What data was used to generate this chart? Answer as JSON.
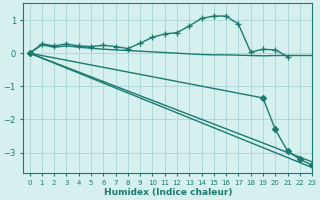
{
  "xlabel": "Humidex (Indice chaleur)",
  "ylabel": "",
  "background_color": "#d6f0f0",
  "grid_color": "#b0d8d8",
  "line_color": "#1a7a6e",
  "xlim": [
    -0.5,
    23
  ],
  "ylim": [
    -3.6,
    1.5
  ],
  "yticks": [
    1,
    0,
    -1,
    -2,
    -3
  ],
  "xticks": [
    0,
    1,
    2,
    3,
    4,
    5,
    6,
    7,
    8,
    9,
    10,
    11,
    12,
    13,
    14,
    15,
    16,
    17,
    18,
    19,
    20,
    21,
    22,
    23
  ],
  "series": [
    {
      "x": [
        0,
        1,
        2,
        3,
        4,
        5,
        6,
        7,
        8,
        9,
        10,
        11,
        12,
        13,
        14,
        15,
        16,
        17,
        18,
        19,
        20,
        21,
        22,
        23
      ],
      "y": [
        0.0,
        0.25,
        0.18,
        0.22,
        0.18,
        0.15,
        0.12,
        0.1,
        0.08,
        0.06,
        0.04,
        0.02,
        0.0,
        -0.02,
        -0.04,
        -0.05,
        -0.05,
        -0.06,
        -0.07,
        -0.08,
        -0.07,
        -0.07,
        -0.07,
        -0.07
      ],
      "marker": null,
      "lw": 1.0
    },
    {
      "x": [
        0,
        1,
        2,
        3,
        4,
        5,
        6,
        7,
        8,
        9,
        10,
        11,
        12,
        13,
        14,
        15,
        16,
        17,
        18,
        19,
        20,
        21
      ],
      "y": [
        0.0,
        0.28,
        0.22,
        0.28,
        0.22,
        0.2,
        0.24,
        0.2,
        0.14,
        0.3,
        0.48,
        0.58,
        0.62,
        0.82,
        1.05,
        1.12,
        1.12,
        0.88,
        0.03,
        0.12,
        0.1,
        -0.1
      ],
      "marker": "+",
      "lw": 1.0
    },
    {
      "x": [
        0,
        19,
        20,
        21,
        22,
        23
      ],
      "y": [
        0.0,
        -1.35,
        -2.3,
        -2.95,
        -3.2,
        -3.38
      ],
      "marker": "D",
      "lw": 1.0
    },
    {
      "x": [
        0,
        23
      ],
      "y": [
        0.0,
        -3.28
      ],
      "marker": null,
      "lw": 1.0
    },
    {
      "x": [
        0,
        23
      ],
      "y": [
        0.0,
        -3.45
      ],
      "marker": null,
      "lw": 1.0
    }
  ]
}
